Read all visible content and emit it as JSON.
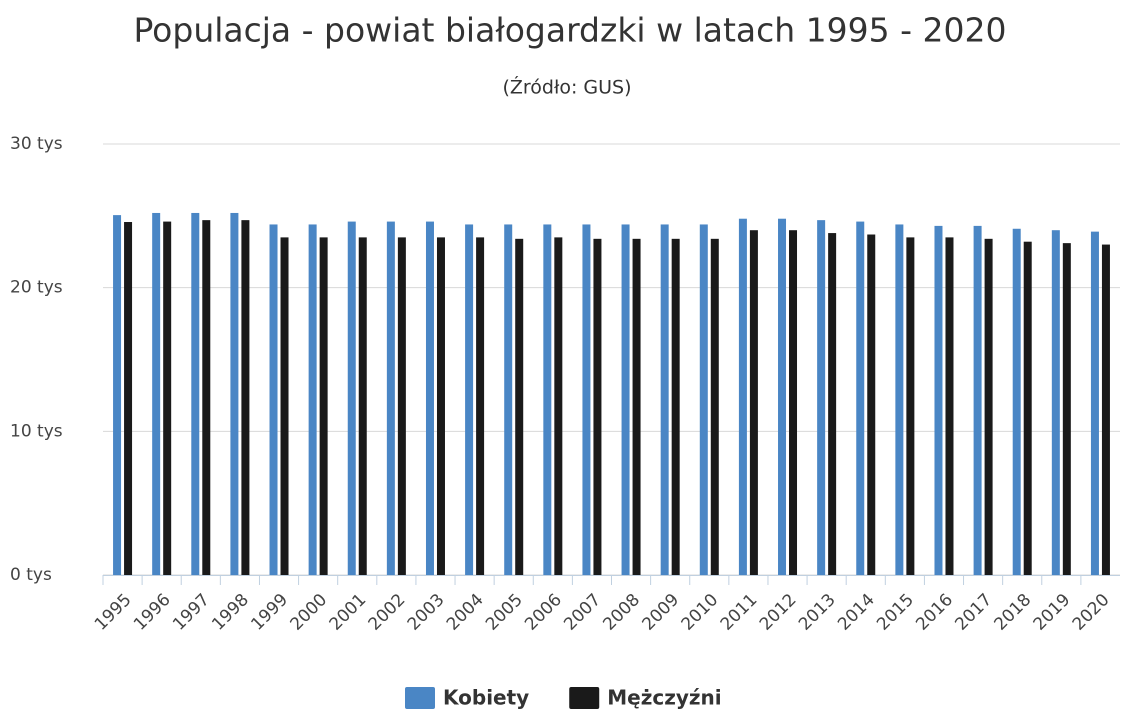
{
  "chart_data": {
    "type": "bar",
    "title": "Populacja - powiat białogardzki w latach 1995 - 2020",
    "subtitle": "(Źródło: GUS)",
    "categories": [
      "1995",
      "1996",
      "1997",
      "1998",
      "1999",
      "2000",
      "2001",
      "2002",
      "2003",
      "2004",
      "2005",
      "2006",
      "2007",
      "2008",
      "2009",
      "2010",
      "2011",
      "2012",
      "2013",
      "2014",
      "2015",
      "2016",
      "2017",
      "2018",
      "2019",
      "2020"
    ],
    "series": [
      {
        "name": "Kobiety",
        "color": "#4a86c5",
        "values": [
          25050,
          25200,
          25200,
          25200,
          24400,
          24400,
          24600,
          24600,
          24600,
          24400,
          24400,
          24400,
          24400,
          24400,
          24400,
          24400,
          24800,
          24800,
          24700,
          24600,
          24400,
          24300,
          24300,
          24100,
          24000,
          23900
        ]
      },
      {
        "name": "Mężczyźni",
        "color": "#1a1a1a",
        "values": [
          24570,
          24600,
          24700,
          24700,
          23500,
          23500,
          23500,
          23500,
          23500,
          23500,
          23400,
          23500,
          23400,
          23400,
          23400,
          23400,
          24000,
          24000,
          23800,
          23700,
          23500,
          23500,
          23400,
          23200,
          23100,
          23000
        ]
      }
    ],
    "ylim": [
      0,
      30000
    ],
    "yticks": [
      {
        "value": 0,
        "label": "0 tys"
      },
      {
        "value": 10000,
        "label": "10 tys"
      },
      {
        "value": 20000,
        "label": "20 tys"
      },
      {
        "value": 30000,
        "label": "30 tys"
      }
    ],
    "grid": true,
    "legend": "bottom"
  }
}
